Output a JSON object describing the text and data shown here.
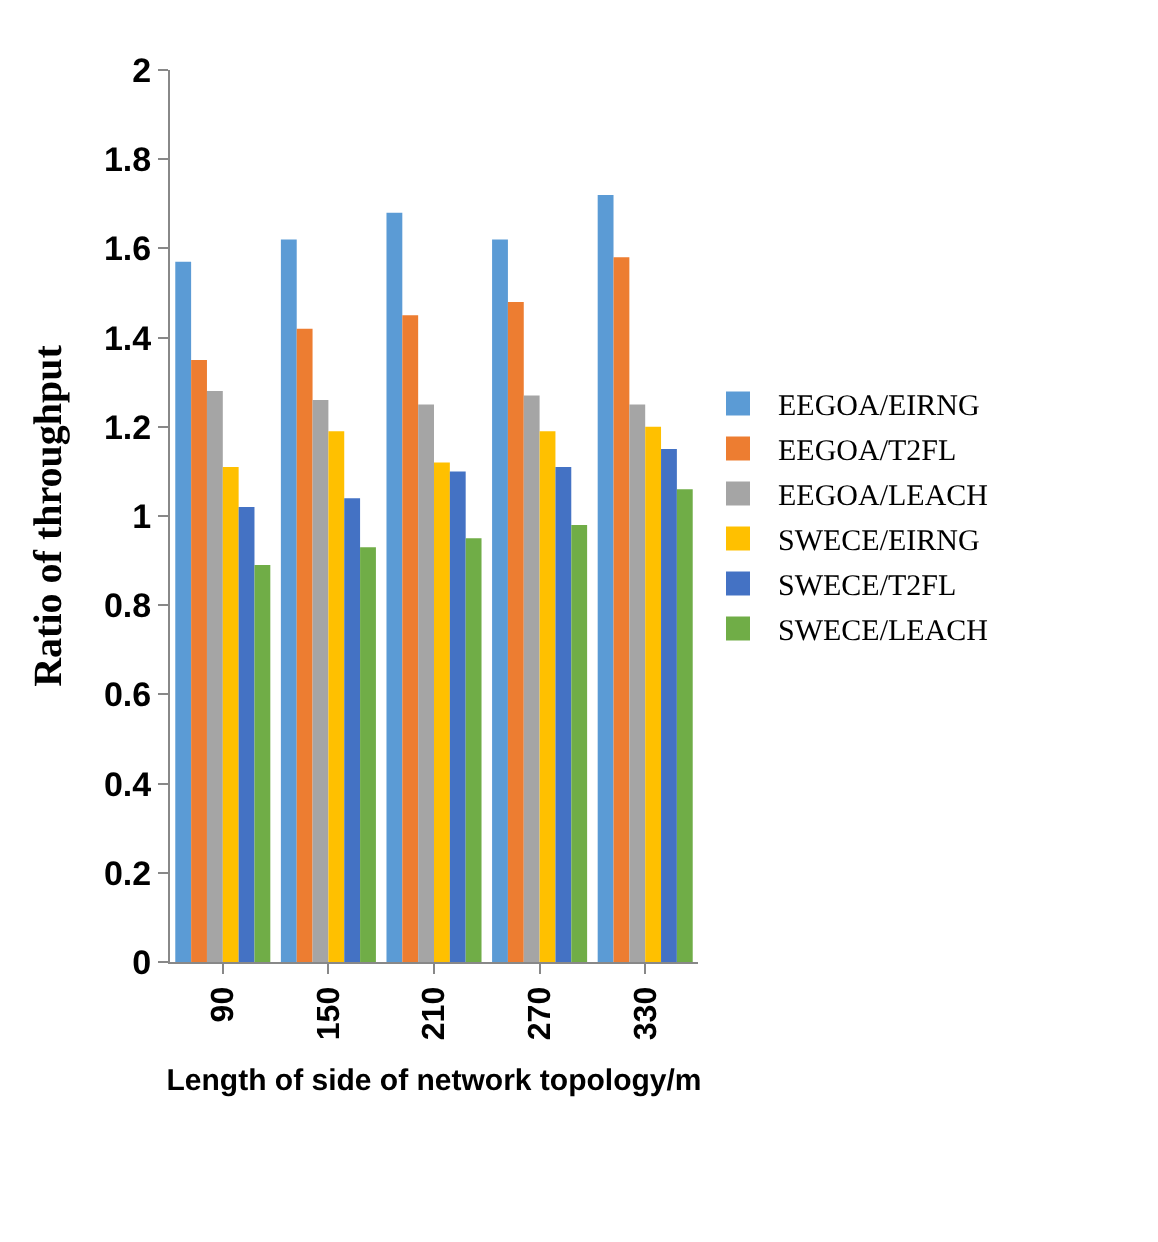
{
  "chart_data": {
    "type": "bar",
    "xlabel": "Length of side of network topology/m",
    "ylabel": "Ratio of throughput",
    "categories": [
      "90",
      "150",
      "210",
      "270",
      "330"
    ],
    "ylim": [
      0,
      2
    ],
    "yticks": [
      0,
      0.2,
      0.4,
      0.6,
      0.8,
      1,
      1.2,
      1.4,
      1.6,
      1.8,
      2
    ],
    "grid": false,
    "legend": "right",
    "series": [
      {
        "name": "EEGOA/EIRNG",
        "color": "#5b9bd5",
        "values": [
          1.57,
          1.62,
          1.68,
          1.62,
          1.72
        ]
      },
      {
        "name": "EEGOA/T2FL",
        "color": "#ed7d31",
        "values": [
          1.35,
          1.42,
          1.45,
          1.48,
          1.58
        ]
      },
      {
        "name": "EEGOA/LEACH",
        "color": "#a5a5a5",
        "values": [
          1.28,
          1.26,
          1.25,
          1.27,
          1.25
        ]
      },
      {
        "name": "SWECE/EIRNG",
        "color": "#ffc000",
        "values": [
          1.11,
          1.19,
          1.12,
          1.19,
          1.2
        ]
      },
      {
        "name": "SWECE/T2FL",
        "color": "#4472c4",
        "values": [
          1.02,
          1.04,
          1.1,
          1.11,
          1.15
        ]
      },
      {
        "name": "SWECE/LEACH",
        "color": "#70ad47",
        "values": [
          0.89,
          0.93,
          0.95,
          0.98,
          1.06
        ]
      }
    ]
  }
}
